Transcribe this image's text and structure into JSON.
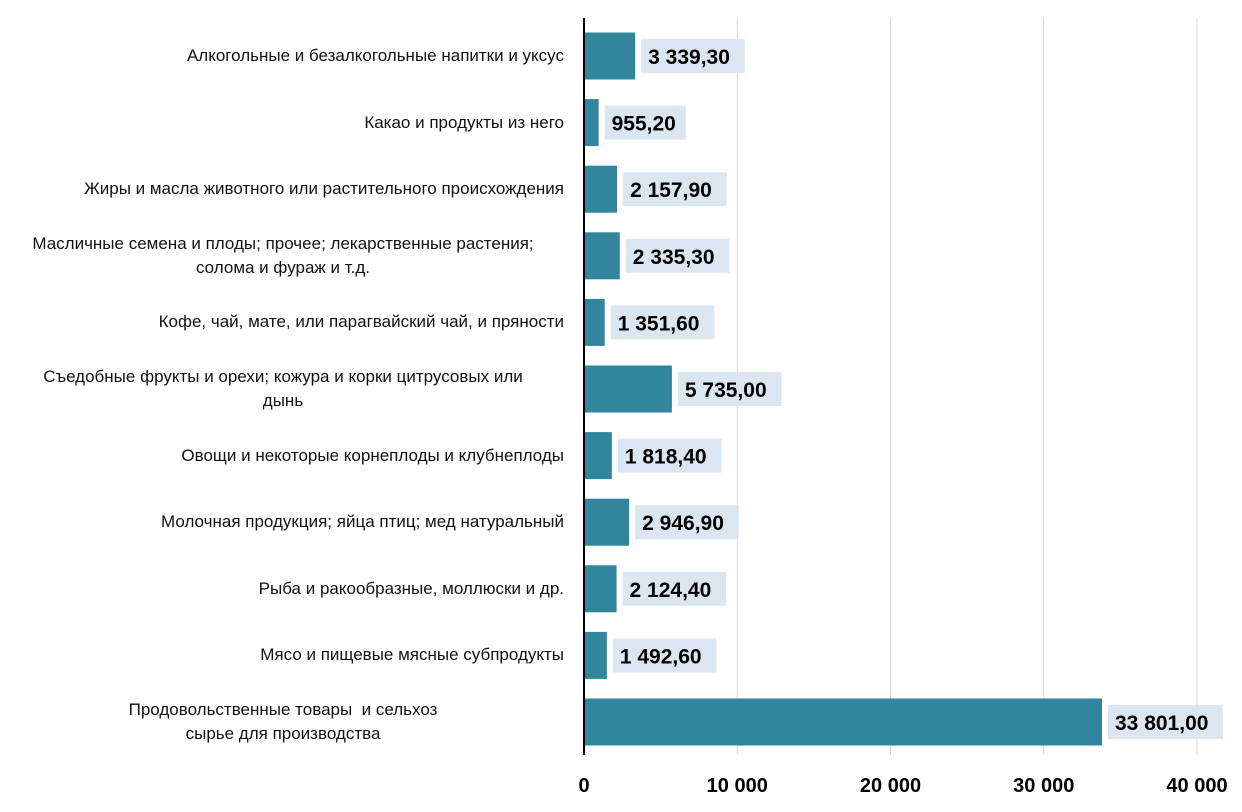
{
  "colors": {
    "bar": "#31859c",
    "label_bg": "#dce6f1",
    "grid": "#d9d9d9",
    "axis": "#000000",
    "text": "#000000"
  },
  "chart_data": {
    "type": "bar",
    "orientation": "horizontal",
    "categories": [
      "Алкогольные и безалкогольные напитки и уксус",
      "Какао и продукты из него",
      "Жиры и масла животного или растительного происхождения",
      "Масличные семена и плоды; прочее; лекарственные растения; солома и фураж и т.д.",
      "Кофе, чай, мате, или парагвайский чай, и пряности",
      "Съедобные фрукты и орехи; кожура и корки цитрусовых или дынь",
      "Овощи и некоторые корнеплоды и клубнеплоды",
      "Молочная продукция; яйца птиц; мед натуральный",
      "Рыба и ракообразные, моллюски и др.",
      "Мясо и пищевые мясные субпродукты",
      "Продовольственные товары  и сельхоз сырье для производства"
    ],
    "category_lines": [
      [
        "Алкогольные и безалкогольные напитки и уксус"
      ],
      [
        "Какао и продукты из него"
      ],
      [
        "Жиры и масла животного или растительного происхождения"
      ],
      [
        "Масличные семена и плоды; прочее; лекарственные растения;",
        "солома и фураж и т.д."
      ],
      [
        "Кофе, чай, мате, или парагвайский чай, и пряности"
      ],
      [
        "Съедобные фрукты и орехи; кожура и корки цитрусовых или",
        "дынь"
      ],
      [
        "Овощи и некоторые корнеплоды и клубнеплоды"
      ],
      [
        "Молочная продукция; яйца птиц; мед натуральный"
      ],
      [
        "Рыба и ракообразные, моллюски и др."
      ],
      [
        "Мясо и пищевые мясные субпродукты"
      ],
      [
        "Продовольственные товары  и сельхоз",
        "сырье для производства"
      ]
    ],
    "values": [
      3339.3,
      955.2,
      2157.9,
      2335.3,
      1351.6,
      5735.0,
      1818.4,
      2946.9,
      2124.4,
      1492.6,
      33801.0
    ],
    "data_labels": [
      "3 339,30",
      "955,20",
      "2 157,90",
      "2 335,30",
      "1 351,60",
      "5 735,00",
      "1 818,40",
      "2 946,90",
      "2 124,40",
      "1 492,60",
      "33 801,00"
    ],
    "xlim": [
      0,
      40000
    ],
    "x_ticks": [
      0,
      10000,
      20000,
      30000,
      40000
    ],
    "x_tick_labels": [
      "0",
      "10 000",
      "20 000",
      "30 000",
      "40 000"
    ],
    "grid": true,
    "legend": "none"
  }
}
